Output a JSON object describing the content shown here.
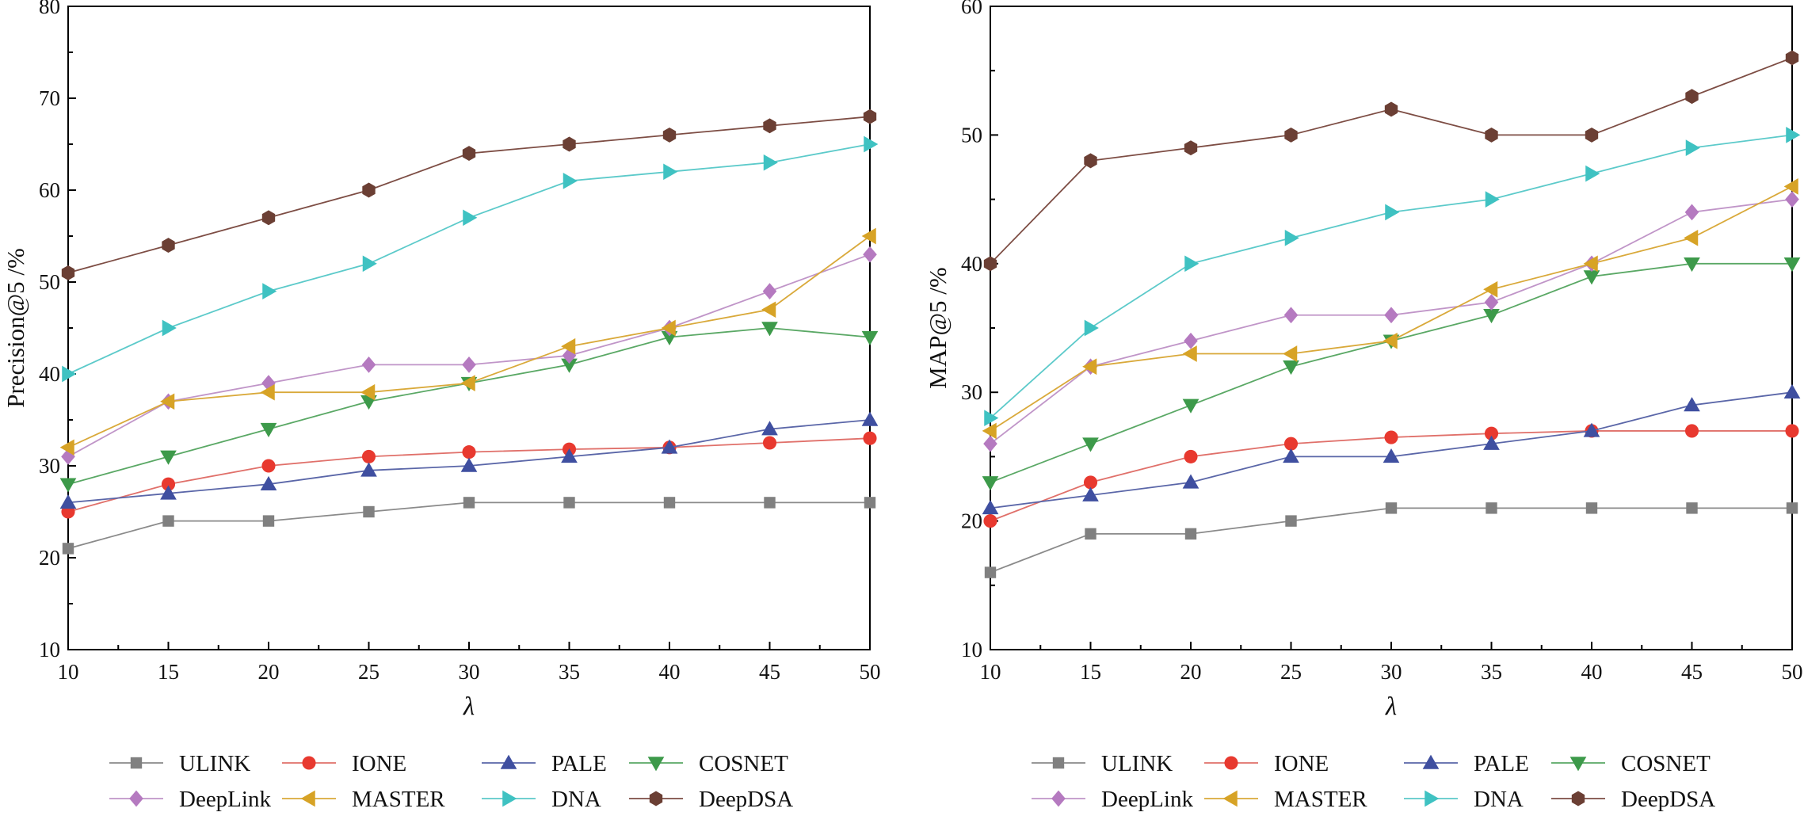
{
  "chart_data": [
    {
      "type": "line",
      "xlabel": "λ",
      "ylabel": "Precision@5 /%",
      "xlim": [
        10,
        50
      ],
      "ylim": [
        10,
        80
      ],
      "x": [
        10,
        15,
        20,
        25,
        30,
        35,
        40,
        45,
        50
      ],
      "xticks": [
        "10",
        "15",
        "20",
        "25",
        "30",
        "35",
        "40",
        "45",
        "50"
      ],
      "yticks": [
        "10",
        "20",
        "30",
        "40",
        "50",
        "60",
        "70",
        "80"
      ],
      "grid": false,
      "legend_position": "bottom",
      "series": [
        {
          "name": "ULINK",
          "values": [
            21,
            24,
            24,
            25,
            26,
            26,
            26,
            26,
            26
          ]
        },
        {
          "name": "IONE",
          "values": [
            25,
            28,
            30,
            31,
            31.5,
            31.8,
            32,
            32.5,
            33
          ]
        },
        {
          "name": "PALE",
          "values": [
            26,
            27,
            28,
            29.5,
            30,
            31,
            32,
            34,
            35
          ]
        },
        {
          "name": "COSNET",
          "values": [
            28,
            31,
            34,
            37,
            39,
            41,
            44,
            45,
            44
          ]
        },
        {
          "name": "DeepLink",
          "values": [
            31,
            37,
            39,
            41,
            41,
            42,
            45,
            49,
            53
          ]
        },
        {
          "name": "MASTER",
          "values": [
            32,
            37,
            38,
            38,
            39,
            43,
            45,
            47,
            55
          ]
        },
        {
          "name": "DNA",
          "values": [
            40,
            45,
            49,
            52,
            57,
            61,
            62,
            63,
            65
          ]
        },
        {
          "name": "DeepDSA",
          "values": [
            51,
            54,
            57,
            60,
            64,
            65,
            66,
            67,
            68
          ]
        }
      ]
    },
    {
      "type": "line",
      "xlabel": "λ",
      "ylabel": "MAP@5 /%",
      "xlim": [
        10,
        50
      ],
      "ylim": [
        10,
        60
      ],
      "x": [
        10,
        15,
        20,
        25,
        30,
        35,
        40,
        45,
        50
      ],
      "xticks": [
        "10",
        "15",
        "20",
        "25",
        "30",
        "35",
        "40",
        "45",
        "50"
      ],
      "yticks": [
        "10",
        "20",
        "30",
        "40",
        "50",
        "60"
      ],
      "grid": false,
      "legend_position": "bottom",
      "series": [
        {
          "name": "ULINK",
          "values": [
            16,
            19,
            19,
            20,
            21,
            21,
            21,
            21,
            21
          ]
        },
        {
          "name": "IONE",
          "values": [
            20,
            23,
            25,
            26,
            26.5,
            26.8,
            27,
            27,
            27
          ]
        },
        {
          "name": "PALE",
          "values": [
            21,
            22,
            23,
            25,
            25,
            26,
            27,
            29,
            30
          ]
        },
        {
          "name": "COSNET",
          "values": [
            23,
            26,
            29,
            32,
            34,
            36,
            39,
            40,
            40
          ]
        },
        {
          "name": "DeepLink",
          "values": [
            26,
            32,
            34,
            36,
            36,
            37,
            40,
            44,
            45
          ]
        },
        {
          "name": "MASTER",
          "values": [
            27,
            32,
            33,
            33,
            34,
            38,
            40,
            42,
            46
          ]
        },
        {
          "name": "DNA",
          "values": [
            28,
            35,
            40,
            42,
            44,
            45,
            47,
            49,
            50
          ]
        },
        {
          "name": "DeepDSA",
          "values": [
            40,
            48,
            49,
            50,
            52,
            50,
            50,
            53,
            56
          ]
        }
      ]
    }
  ],
  "series_style": {
    "ULINK": {
      "color": "#808080",
      "line": "#8a8a8a",
      "marker": "square"
    },
    "IONE": {
      "color": "#e8392f",
      "line": "#e0706a",
      "marker": "circle"
    },
    "PALE": {
      "color": "#3f4fa0",
      "line": "#5a66a8",
      "marker": "triangle-up"
    },
    "COSNET": {
      "color": "#3d9a4a",
      "line": "#5aa865",
      "marker": "triangle-down"
    },
    "DeepLink": {
      "color": "#b57ac0",
      "line": "#c095c8",
      "marker": "diamond"
    },
    "MASTER": {
      "color": "#d7a326",
      "line": "#d9a93a",
      "marker": "triangle-left"
    },
    "DNA": {
      "color": "#3fc2c2",
      "line": "#5ccaca",
      "marker": "triangle-right"
    },
    "DeepDSA": {
      "color": "#6b3f34",
      "line": "#7d4d44",
      "marker": "hexagon"
    }
  }
}
